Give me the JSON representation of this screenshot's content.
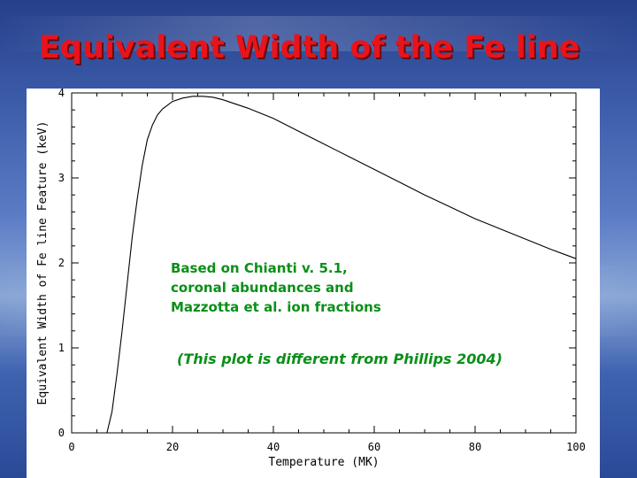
{
  "slide": {
    "title": "Equivalent Width of the Fe line"
  },
  "notes": {
    "lines": [
      "Based on Chianti v. 5.1,",
      "coronal abundances and",
      "Mazzotta et al. ion fractions"
    ],
    "comparison": "(This plot is different from Phillips 2004)",
    "color": "#0a8f18"
  },
  "colors": {
    "title": "#e8141c",
    "curve": "#000000"
  },
  "chart_data": {
    "type": "line",
    "xlabel": "Temperature (MK)",
    "ylabel": "Equivalent Width of Fe line Feature (keV)",
    "xlim": [
      0,
      100
    ],
    "ylim": [
      0,
      4
    ],
    "xticks": [
      "0",
      "20",
      "40",
      "60",
      "80",
      "100"
    ],
    "yticks": [
      "0",
      "1",
      "2",
      "3",
      "4"
    ],
    "grid": false,
    "series": [
      {
        "x": [
          7,
          8,
          9,
          10,
          11,
          12,
          13,
          14,
          15,
          16,
          17,
          18,
          20,
          22,
          24,
          26,
          28,
          30,
          35,
          40,
          45,
          50,
          55,
          60,
          65,
          70,
          75,
          80,
          85,
          90,
          95,
          100
        ],
        "y": [
          0,
          0.25,
          0.7,
          1.2,
          1.75,
          2.3,
          2.75,
          3.15,
          3.45,
          3.62,
          3.74,
          3.81,
          3.9,
          3.94,
          3.96,
          3.96,
          3.95,
          3.92,
          3.82,
          3.7,
          3.55,
          3.4,
          3.25,
          3.1,
          2.95,
          2.8,
          2.66,
          2.52,
          2.4,
          2.28,
          2.16,
          2.05
        ]
      }
    ]
  }
}
